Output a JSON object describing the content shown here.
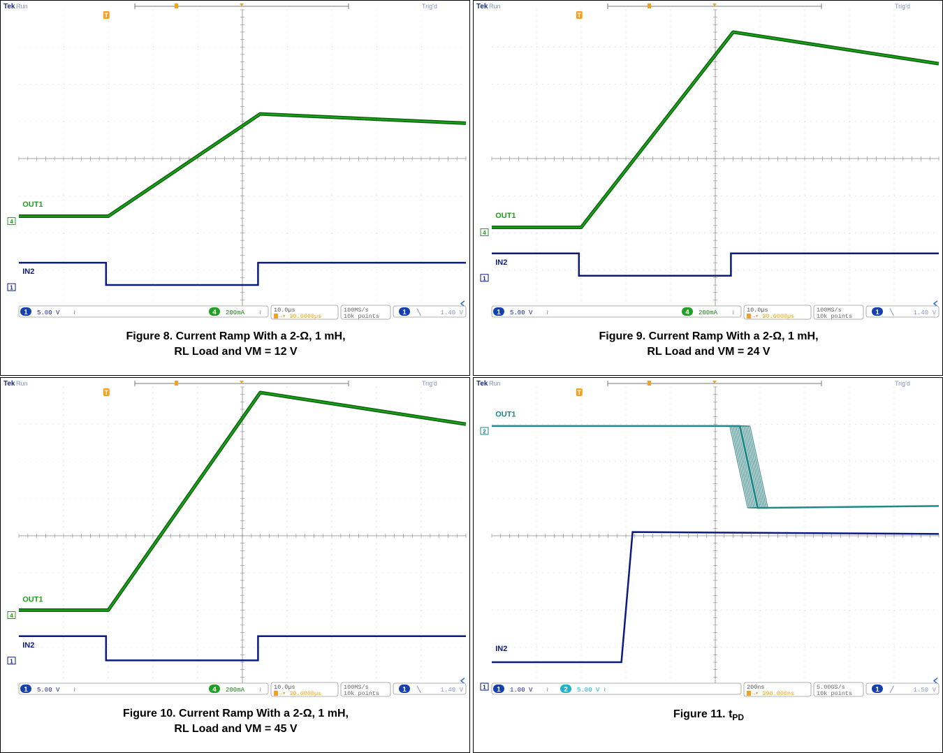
{
  "colors": {
    "out_green": "#1aa31a",
    "out_green_dark": "#0b5e0b",
    "in_navy": "#0a1a80",
    "out_cyan": "#1a8a8a",
    "orange": "#f5a020",
    "grid": "#c8c8c8",
    "badge_blue": "#1540b0",
    "badge_green": "#20a020",
    "badge_cyan": "#20b0c8"
  },
  "chart_data": [
    {
      "type": "line",
      "title": "Figure 8. Current Ramp With a 2-Ω, 1 mH,",
      "title_line2": "RL Load and VM = 12 V",
      "header": {
        "brand": "Tek",
        "state": "Run",
        "trig": "Trig'd"
      },
      "traces": [
        {
          "name": "OUT1",
          "color": "out_green",
          "thick": true,
          "marker": "4",
          "x": [
            0,
            2.0,
            5.4,
            10.0
          ],
          "y": [
            -1.55,
            -1.55,
            1.2,
            0.95
          ]
        },
        {
          "name": "IN2",
          "color": "in_navy",
          "thick": false,
          "marker": "1",
          "x": [
            0,
            1.95,
            1.95,
            5.35,
            5.35,
            10.0
          ],
          "y": [
            -2.8,
            -2.8,
            -3.4,
            -3.4,
            -2.8,
            -2.8
          ]
        }
      ],
      "labels": [
        {
          "text": "OUT1",
          "x": 0.05,
          "y": -1.3,
          "color": "out_green"
        },
        {
          "text": "IN2",
          "x": 0.05,
          "y": -3.1,
          "color": "in_navy"
        }
      ],
      "status": {
        "ch1": "5.00 V",
        "ch1_badge": "1",
        "ch2": "200mA",
        "ch2_badge": "4",
        "ch2_color": "badge_green",
        "time": "10.0µs",
        "delay": "30.6000µs",
        "rate": "100MS/s",
        "points": "10k points",
        "trig_ch": "1",
        "trig": "1.40 V"
      }
    },
    {
      "type": "line",
      "title": "Figure 9. Current Ramp With a 2-Ω, 1 mH,",
      "title_line2": "RL Load and VM = 24 V",
      "header": {
        "brand": "Tek",
        "state": "Run",
        "trig": "Trig'd"
      },
      "traces": [
        {
          "name": "OUT1",
          "color": "out_green",
          "thick": true,
          "marker": "4",
          "x": [
            0,
            2.0,
            5.4,
            10.0
          ],
          "y": [
            -1.85,
            -1.85,
            3.4,
            2.55
          ]
        },
        {
          "name": "IN2",
          "color": "in_navy",
          "thick": false,
          "marker": "1",
          "x": [
            0,
            1.95,
            1.95,
            5.35,
            5.35,
            10.0
          ],
          "y": [
            -2.55,
            -2.55,
            -3.15,
            -3.15,
            -2.55,
            -2.55
          ]
        }
      ],
      "labels": [
        {
          "text": "OUT1",
          "x": 0.05,
          "y": -1.6,
          "color": "out_green"
        },
        {
          "text": "IN2",
          "x": 0.05,
          "y": -2.85,
          "color": "in_navy"
        }
      ],
      "status": {
        "ch1": "5.00 V",
        "ch1_badge": "1",
        "ch2": "200mA",
        "ch2_badge": "4",
        "ch2_color": "badge_green",
        "time": "10.0µs",
        "delay": "30.6000µs",
        "rate": "100MS/s",
        "points": "10k points",
        "trig_ch": "1",
        "trig": "1.40 V"
      }
    },
    {
      "type": "line",
      "title": "Figure 10. Current Ramp With a 2-Ω, 1 mH,",
      "title_line2": "RL Load and VM = 45 V",
      "header": {
        "brand": "Tek",
        "state": "Run",
        "trig": "Trig'd"
      },
      "traces": [
        {
          "name": "OUT1",
          "color": "out_green",
          "thick": true,
          "marker": "4",
          "x": [
            0,
            2.0,
            5.4,
            10.0
          ],
          "y": [
            -2.0,
            -2.0,
            3.85,
            3.0
          ]
        },
        {
          "name": "IN2",
          "color": "in_navy",
          "thick": false,
          "marker": "1",
          "x": [
            0,
            1.95,
            1.95,
            5.35,
            5.35,
            10.0
          ],
          "y": [
            -2.7,
            -2.7,
            -3.35,
            -3.35,
            -2.7,
            -2.7
          ]
        }
      ],
      "labels": [
        {
          "text": "OUT1",
          "x": 0.05,
          "y": -1.77,
          "color": "out_green"
        },
        {
          "text": "IN2",
          "x": 0.05,
          "y": -3.0,
          "color": "in_navy"
        }
      ],
      "status": {
        "ch1": "5.00 V",
        "ch1_badge": "1",
        "ch2": "200mA",
        "ch2_badge": "4",
        "ch2_color": "badge_green",
        "time": "10.0µs",
        "delay": "30.6000µs",
        "rate": "100MS/s",
        "points": "10k points",
        "trig_ch": "1",
        "trig": "1.40 V"
      }
    },
    {
      "type": "line",
      "title": "Figure 11. t",
      "title_sub": "PD",
      "title_line2": "",
      "header": {
        "brand": "Tek",
        "state": "Run",
        "trig": "Trig'd"
      },
      "traces": [
        {
          "name": "OUT1",
          "color": "out_cyan",
          "thick": true,
          "marker": "2",
          "x": [
            0,
            5.55,
            5.95,
            10.0
          ],
          "y": [
            2.95,
            2.95,
            0.75,
            0.8
          ],
          "spread": 0.45
        },
        {
          "name": "IN2",
          "color": "in_navy",
          "thick": false,
          "marker": "1",
          "x": [
            0,
            2.9,
            3.15,
            10.0
          ],
          "y": [
            -3.4,
            -3.4,
            0.1,
            0.05
          ]
        }
      ],
      "labels": [
        {
          "text": "OUT1",
          "x": 0.05,
          "y": 3.2,
          "color": "out_cyan"
        },
        {
          "text": "IN2",
          "x": 0.05,
          "y": -3.1,
          "color": "in_navy"
        }
      ],
      "status": {
        "ch1": "1.00 V",
        "ch1_badge": "1",
        "ch2": "5.00 V",
        "ch2_badge": "2",
        "ch2_color": "badge_cyan",
        "ch2_inline": true,
        "time": "200ns",
        "delay": "398.000ns",
        "rate": "5.00GS/s",
        "points": "10k points",
        "trig_ch": "1",
        "trig": "1.50 V",
        "trig_rising": true
      }
    }
  ]
}
